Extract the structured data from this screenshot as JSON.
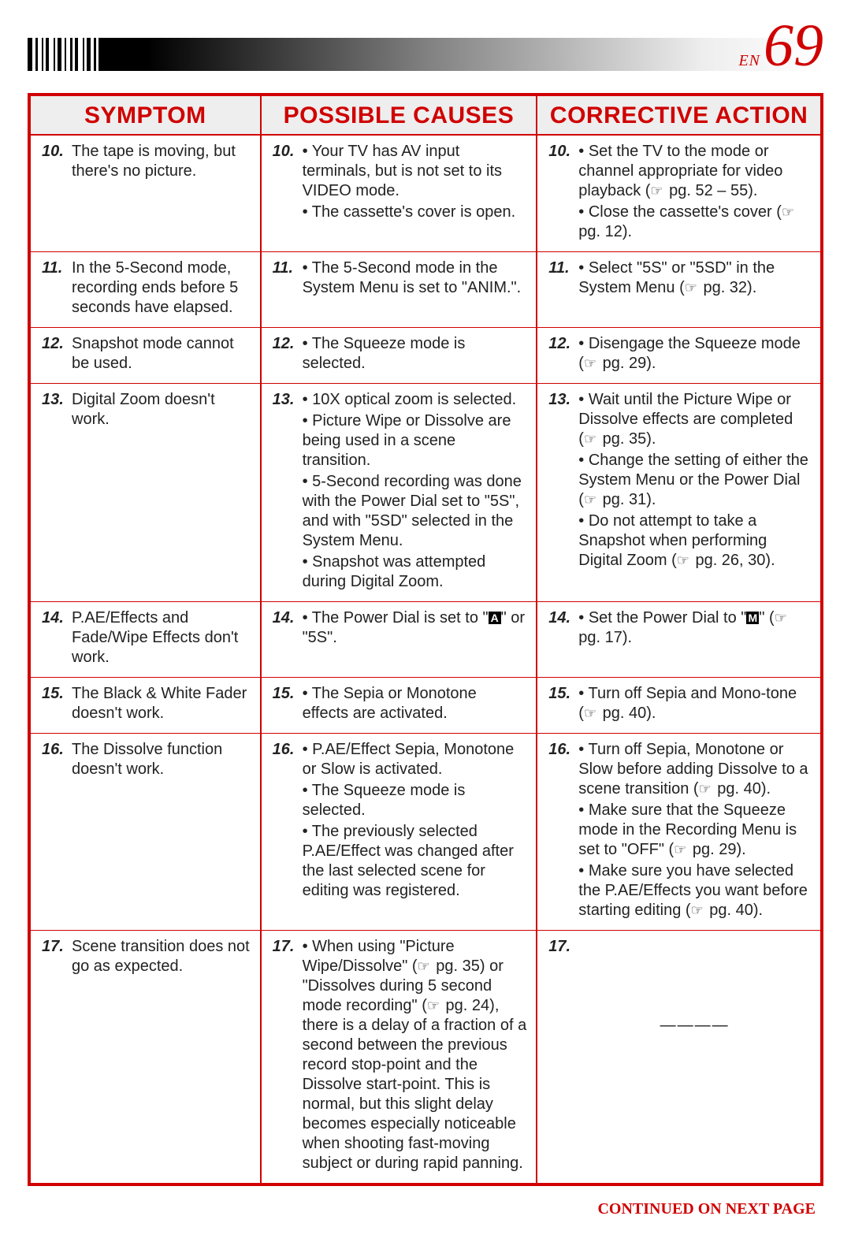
{
  "page": {
    "lang_prefix": "EN",
    "number": "69",
    "continued": "CONTINUED ON NEXT PAGE"
  },
  "headers": {
    "col1": "SYMPTOM",
    "col2": "POSSIBLE CAUSES",
    "col3": "CORRECTIVE ACTION"
  },
  "rows": [
    {
      "n": "10.",
      "symptom": "The tape is moving, but there's no picture.",
      "cause": "• Your TV has AV input terminals, but is not set to its VIDEO mode.\n• The cassette's cover is open.",
      "action": "• Set the TV to the mode or channel appropriate for video playback (☞ pg. 52 – 55).\n• Close the cassette's cover (☞ pg. 12)."
    },
    {
      "n": "11.",
      "symptom": "In the 5-Second mode, recording ends before 5 seconds have elapsed.",
      "cause": "• The 5-Second mode in the System Menu is set to \"ANIM.\".",
      "action": "• Select \"5S\" or \"5SD\" in the System Menu (☞ pg. 32)."
    },
    {
      "n": "12.",
      "symptom": "Snapshot mode cannot be used.",
      "cause": "• The Squeeze mode is selected.",
      "action": "• Disengage the Squeeze mode (☞ pg. 29)."
    },
    {
      "n": "13.",
      "symptom": "Digital Zoom doesn't work.",
      "cause": "• 10X optical zoom is selected.\n• Picture Wipe or Dissolve are being used in a scene transition.\n• 5-Second recording was done with the Power Dial set to \"5S\", and with \"5SD\" selected in the System Menu.\n• Snapshot was attempted during Digital Zoom.",
      "action": "• Wait until the Picture Wipe or Dissolve effects are completed (☞ pg. 35).\n• Change the setting of either the System Menu or the Power Dial (☞ pg. 31).\n• Do not attempt to take a Snapshot when performing Digital Zoom (☞ pg. 26, 30)."
    },
    {
      "n": "14.",
      "symptom": "P.AE/Effects and Fade/Wipe Effects don't work.",
      "cause_html": "• The Power Dial is set to \"<span class='blk-a'>A</span>\" or \"5S\".",
      "action_html": "• Set the Power Dial to \"<span class='blk-a'>M</span>\" (☞ pg. 17)."
    },
    {
      "n": "15.",
      "symptom": "The Black & White Fader doesn't work.",
      "cause": "• The Sepia or Monotone effects are activated.",
      "action": "• Turn off Sepia and Mono-tone (☞ pg. 40)."
    },
    {
      "n": "16.",
      "symptom": "The Dissolve function doesn't work.",
      "cause": "• P.AE/Effect Sepia, Monotone or Slow is activated.\n• The Squeeze mode is selected.\n• The previously selected P.AE/Effect was changed after the last selected scene for editing was registered.",
      "action": "• Turn off Sepia, Monotone or Slow before adding Dissolve to a scene transition (☞ pg. 40).\n• Make sure that the Squeeze mode in the Recording Menu is set to \"OFF\" (☞ pg. 29).\n• Make sure you have selected the P.AE/Effects you want before starting editing (☞ pg. 40)."
    },
    {
      "n": "17.",
      "symptom": "Scene transition does not go as expected.",
      "cause": "• When using \"Picture Wipe/Dissolve\" (☞ pg. 35) or \"Dissolves during 5 second mode recording\" (☞ pg. 24), there is a delay of a fraction of a second between the previous record stop-point and the Dissolve start-point. This is normal, but this slight delay becomes especially noticeable when shooting fast-moving subject or during rapid panning.",
      "action_dash": "————"
    }
  ]
}
